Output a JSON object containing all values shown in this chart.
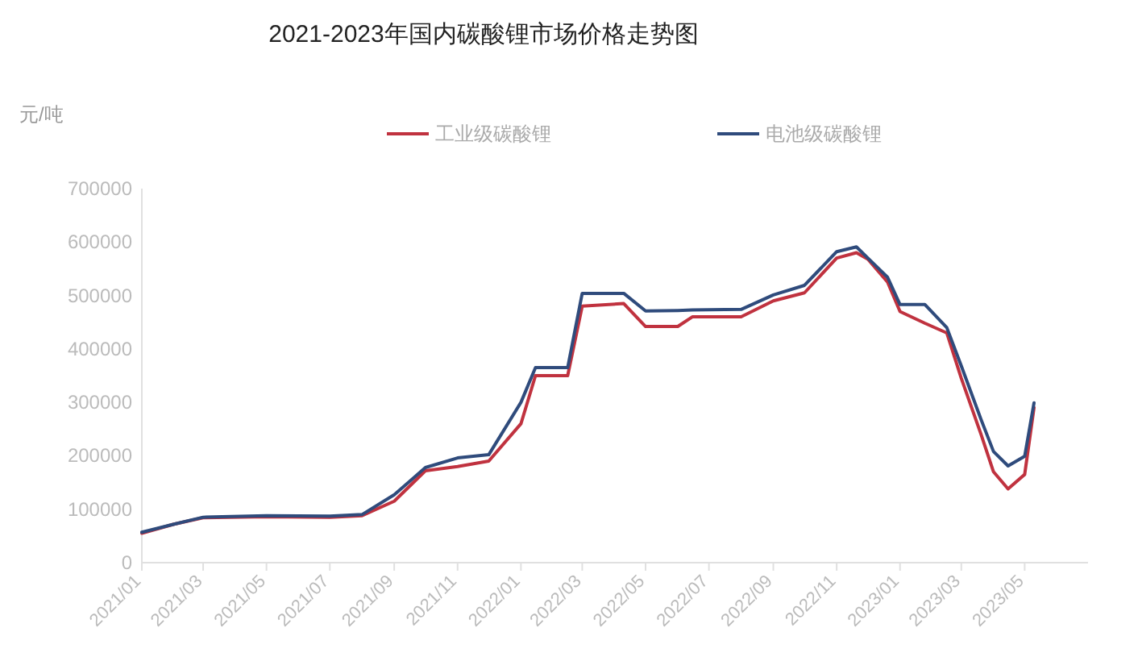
{
  "chart_data": {
    "type": "line",
    "title": "2021-2023年国内碳酸锂市场价格走势图",
    "ylabel": "元/吨",
    "x": [
      "2021-01-01",
      "2021-02-01",
      "2021-03-01",
      "2021-05-01",
      "2021-07-01",
      "2021-08-01",
      "2021-09-01",
      "2021-10-01",
      "2021-11-01",
      "2021-12-01",
      "2022-01-01",
      "2022-01-15",
      "2022-02-15",
      "2022-03-01",
      "2022-04-10",
      "2022-05-01",
      "2022-06-01",
      "2022-06-15",
      "2022-08-01",
      "2022-09-01",
      "2022-10-01",
      "2022-11-01",
      "2022-11-20",
      "2022-12-01",
      "2022-12-20",
      "2023-01-01",
      "2023-01-25",
      "2023-02-15",
      "2023-03-01",
      "2023-03-20",
      "2023-04-01",
      "2023-04-15",
      "2023-05-01",
      "2023-05-10"
    ],
    "series": [
      {
        "name": "工业级碳酸锂",
        "color": "#c0323f",
        "values": [
          55000,
          72000,
          84000,
          86000,
          85000,
          88000,
          115000,
          172000,
          180000,
          190000,
          260000,
          350000,
          350000,
          480000,
          485000,
          442000,
          442000,
          460000,
          460000,
          490000,
          505000,
          570000,
          580000,
          568000,
          525000,
          470000,
          448000,
          430000,
          345000,
          240000,
          170000,
          138000,
          165000,
          290000
        ]
      },
      {
        "name": "电池级碳酸锂",
        "color": "#2f4b7c",
        "values": [
          57000,
          72000,
          85000,
          88000,
          87000,
          90000,
          127000,
          178000,
          196000,
          202000,
          300000,
          365000,
          365000,
          504000,
          504000,
          471000,
          472000,
          473000,
          474000,
          501000,
          519000,
          582000,
          591000,
          570000,
          534000,
          483000,
          483000,
          440000,
          368000,
          268000,
          208000,
          181000,
          199000,
          299000
        ]
      }
    ],
    "xlim": [
      "2021-01-01",
      "2023-07-01"
    ],
    "xticks": [
      {
        "value": "2021-01-01",
        "label": "2021/01"
      },
      {
        "value": "2021-03-01",
        "label": "2021/03"
      },
      {
        "value": "2021-05-01",
        "label": "2021/05"
      },
      {
        "value": "2021-07-01",
        "label": "2021/07"
      },
      {
        "value": "2021-09-01",
        "label": "2021/09"
      },
      {
        "value": "2021-11-01",
        "label": "2021/11"
      },
      {
        "value": "2022-01-01",
        "label": "2022/01"
      },
      {
        "value": "2022-03-01",
        "label": "2022/03"
      },
      {
        "value": "2022-05-01",
        "label": "2022/05"
      },
      {
        "value": "2022-07-01",
        "label": "2022/07"
      },
      {
        "value": "2022-09-01",
        "label": "2022/09"
      },
      {
        "value": "2022-11-01",
        "label": "2022/11"
      },
      {
        "value": "2023-01-01",
        "label": "2023/01"
      },
      {
        "value": "2023-03-01",
        "label": "2023/03"
      },
      {
        "value": "2023-05-01",
        "label": "2023/05"
      }
    ],
    "ylim": [
      0,
      700000
    ],
    "yticks": [
      0,
      100000,
      200000,
      300000,
      400000,
      500000,
      600000,
      700000
    ],
    "grid": false,
    "legend": "top",
    "line_style": "solid"
  }
}
